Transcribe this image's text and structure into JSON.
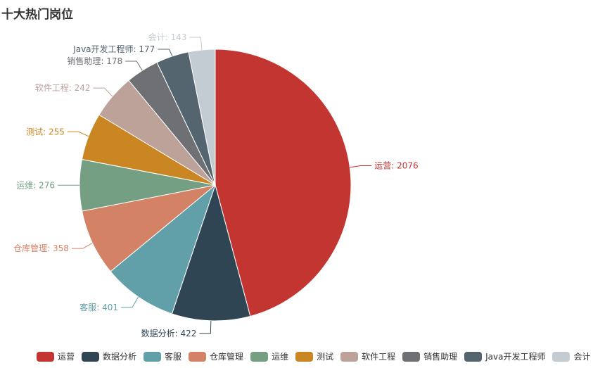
{
  "chart_data": {
    "type": "pie",
    "title": "十大热门岗位",
    "categories": [
      "运营",
      "数据分析",
      "客服",
      "仓库管理",
      "运维",
      "测试",
      "软件工程",
      "销售助理",
      "Java开发工程师",
      "会计"
    ],
    "values": [
      2076,
      422,
      401,
      358,
      276,
      255,
      242,
      178,
      177,
      143
    ],
    "colors": [
      "#c23531",
      "#2f4554",
      "#61a0a8",
      "#d48265",
      "#749f83",
      "#ca8622",
      "#bda29a",
      "#6e7074",
      "#546570",
      "#c4ccd3"
    ],
    "legend_position": "bottom"
  }
}
